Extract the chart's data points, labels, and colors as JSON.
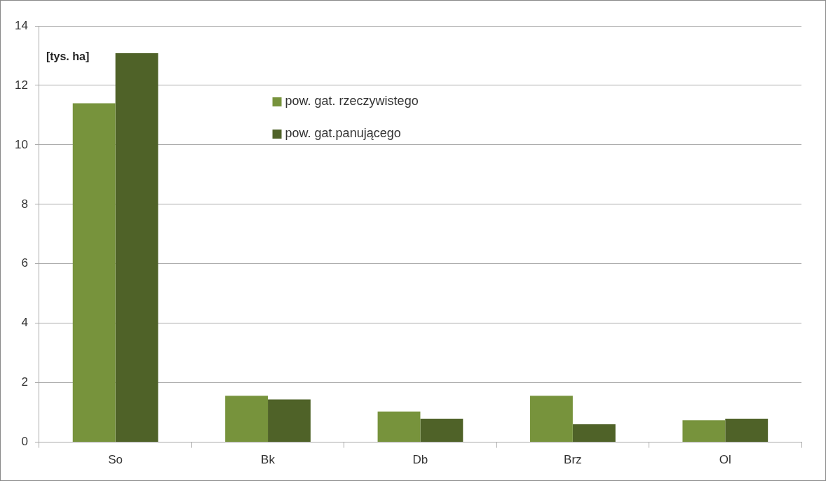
{
  "chart_data": {
    "type": "bar",
    "ylabel": "[tys. ha]",
    "categories": [
      "So",
      "Bk",
      "Db",
      "Brz",
      "Ol"
    ],
    "series": [
      {
        "name": "pow. gat. rzeczywistego",
        "color": "#77933c",
        "values": [
          11.4,
          1.56,
          1.03,
          1.56,
          0.74
        ]
      },
      {
        "name": "pow. gat.panującego",
        "color": "#4f6228",
        "values": [
          13.08,
          1.44,
          0.79,
          0.6,
          0.79
        ]
      }
    ],
    "ylim": [
      0,
      14
    ],
    "yticks": [
      0,
      2,
      4,
      6,
      8,
      10,
      12,
      14
    ],
    "grid": "y",
    "legend": "top"
  }
}
